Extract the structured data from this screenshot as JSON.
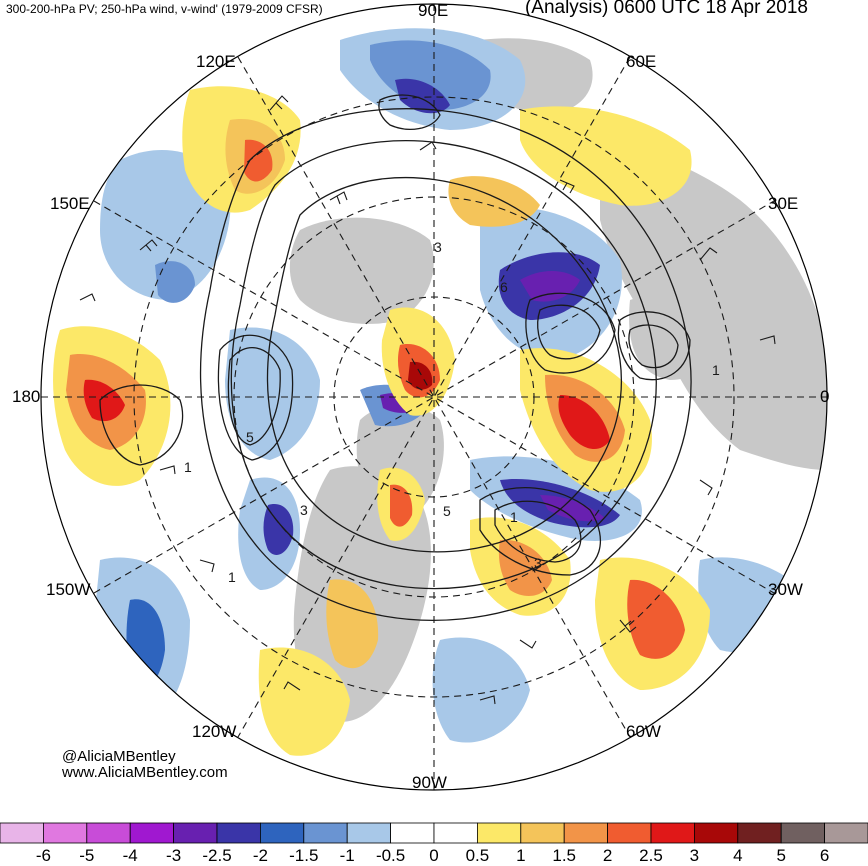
{
  "header": {
    "left": "300-200-hPa PV; 250-hPa wind, v-wind' (1979-2009 CFSR)",
    "right": "(Analysis) 0600 UTC 18 Apr 2018"
  },
  "longitude_labels": {
    "n": "90E",
    "ne": "60E",
    "ene": "30E",
    "e": "0",
    "ese": "30W",
    "se": "60W",
    "s": "90W",
    "sw": "120W",
    "wsw": "150W",
    "w": "180",
    "wnw": "150E",
    "nw": "120E"
  },
  "contour_labels": [
    "3",
    "6",
    "1",
    "5",
    "5",
    "3",
    "1",
    "1",
    "1",
    "3"
  ],
  "credits": {
    "handle": "@AliciaMBentley",
    "site": "www.AliciaMBentley.com"
  },
  "colorbar": {
    "ticks": [
      "-6",
      "-5",
      "-4",
      "-3",
      "-2.5",
      "-2",
      "-1.5",
      "-1",
      "-0.5",
      "0",
      "0.5",
      "1",
      "1.5",
      "2",
      "2.5",
      "3",
      "4",
      "5",
      "6"
    ],
    "colors": [
      "#e8b4e8",
      "#e078e0",
      "#c84cd8",
      "#a018d0",
      "#6820b0",
      "#3a35a8",
      "#2e64be",
      "#6a94d2",
      "#a8c8e8",
      "#ffffff",
      "#ffffff",
      "#fce868",
      "#f4c45a",
      "#f29448",
      "#f05c30",
      "#e01818",
      "#a80808",
      "#702020",
      "#706060",
      "#a89898"
    ]
  },
  "colors": {
    "land": "#c8c8c8",
    "contour": "#1a1a1a"
  }
}
